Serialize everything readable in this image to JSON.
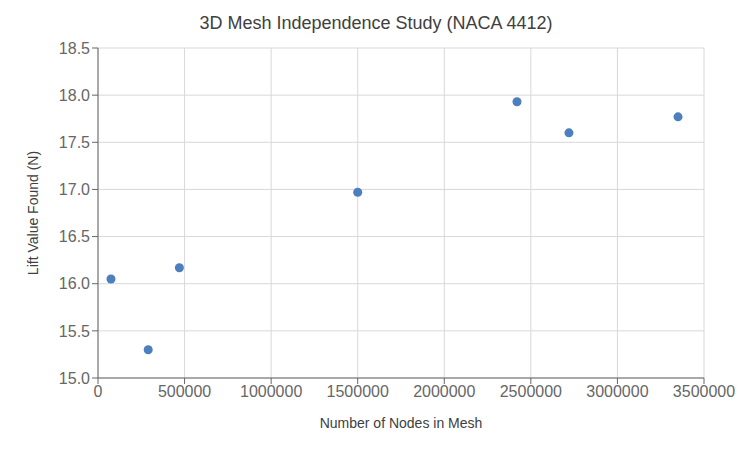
{
  "chart_data": {
    "type": "scatter",
    "title": "3D Mesh Independence Study (NACA 4412)",
    "xlabel": "Number of Nodes in Mesh",
    "ylabel": "Lift Value Found (N)",
    "x": [
      75000,
      290000,
      470000,
      1500000,
      2420000,
      2720000,
      3350000
    ],
    "values": [
      16.05,
      15.3,
      16.17,
      16.97,
      17.93,
      17.6,
      17.77
    ],
    "color": "#4d7fbe",
    "xlim": [
      0,
      3500000
    ],
    "ylim": [
      15.0,
      18.5
    ],
    "xticks": [
      0,
      500000,
      1000000,
      1500000,
      2000000,
      2500000,
      3000000,
      3500000
    ],
    "yticks": [
      {
        "value": 15.0,
        "label": "15.0"
      },
      15.5,
      {
        "value": 16.0,
        "label": "16.0"
      },
      16.5,
      {
        "value": 17.0,
        "label": "17.0"
      },
      17.5,
      {
        "value": 18.0,
        "label": "18.0"
      },
      18.5
    ],
    "grid": true
  }
}
